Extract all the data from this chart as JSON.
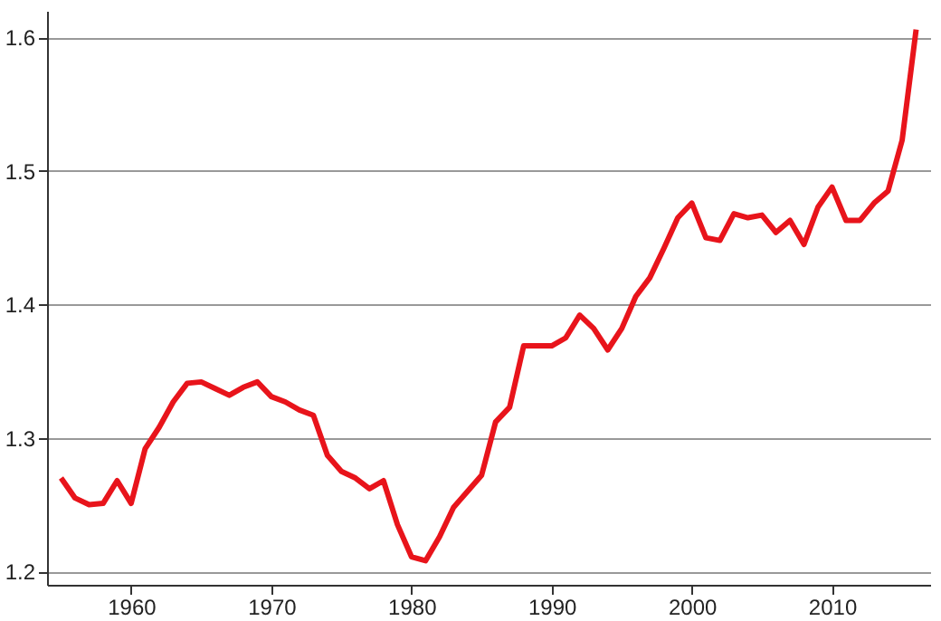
{
  "chart_data": {
    "type": "line",
    "xlim": [
      1954,
      2017
    ],
    "xticks": [
      1960,
      1970,
      1980,
      1990,
      2000,
      2010
    ],
    "ylim": [
      1.19,
      1.62
    ],
    "yticks": [
      1.2,
      1.3,
      1.4,
      1.5,
      1.6
    ],
    "grid": "y",
    "line_style": "solid",
    "x": [
      1955,
      1956,
      1957,
      1958,
      1959,
      1960,
      1961,
      1962,
      1963,
      1964,
      1965,
      1966,
      1967,
      1968,
      1969,
      1970,
      1971,
      1972,
      1973,
      1974,
      1975,
      1976,
      1977,
      1978,
      1979,
      1980,
      1981,
      1982,
      1983,
      1984,
      1985,
      1986,
      1987,
      1988,
      1989,
      1990,
      1991,
      1992,
      1993,
      1994,
      1995,
      1996,
      1997,
      1998,
      1999,
      2000,
      2001,
      2002,
      2003,
      2004,
      2005,
      2006,
      2007,
      2008,
      2009,
      2010,
      2011,
      2012,
      2013,
      2014,
      2015,
      2016
    ],
    "series": [
      {
        "color": "#e8141b",
        "values": [
          1.27,
          1.255,
          1.25,
          1.251,
          1.268,
          1.251,
          1.292,
          1.308,
          1.327,
          1.341,
          1.342,
          1.337,
          1.332,
          1.338,
          1.342,
          1.331,
          1.327,
          1.321,
          1.317,
          1.287,
          1.275,
          1.27,
          1.262,
          1.268,
          1.235,
          1.211,
          1.208,
          1.226,
          1.248,
          1.26,
          1.272,
          1.312,
          1.323,
          1.369,
          1.369,
          1.369,
          1.375,
          1.392,
          1.382,
          1.366,
          1.382,
          1.406,
          1.42,
          1.442,
          1.465,
          1.476,
          1.45,
          1.448,
          1.468,
          1.465,
          1.467,
          1.454,
          1.463,
          1.445,
          1.473,
          1.488,
          1.463,
          1.463,
          1.476,
          1.485,
          1.523,
          1.606
        ]
      }
    ]
  }
}
